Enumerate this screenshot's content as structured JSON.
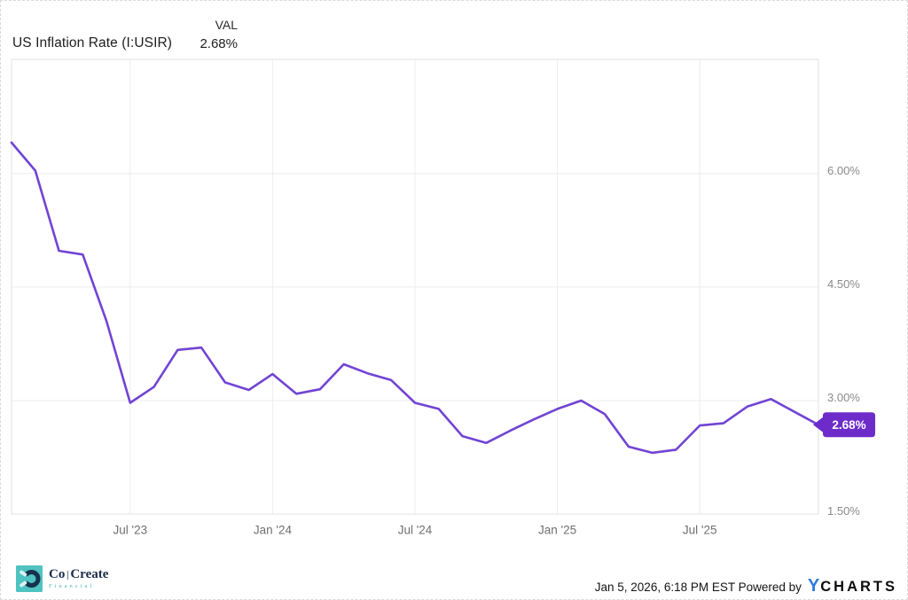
{
  "header": {
    "title": "US Inflation Rate (I:USIR)",
    "val_label": "VAL",
    "val_value": "2.68%"
  },
  "chart_data": {
    "type": "line",
    "title": "US Inflation Rate (I:USIR)",
    "series_name": "US Inflation Rate",
    "unit": "%",
    "x": [
      "Jan 2023",
      "Feb 2023",
      "Mar 2023",
      "Apr 2023",
      "May 2023",
      "Jun 2023",
      "Jul 2023",
      "Aug 2023",
      "Sep 2023",
      "Oct 2023",
      "Nov 2023",
      "Dec 2023",
      "Jan 2024",
      "Feb 2024",
      "Mar 2024",
      "Apr 2024",
      "May 2024",
      "Jun 2024",
      "Jul 2024",
      "Aug 2024",
      "Sep 2024",
      "Oct 2024",
      "Nov 2024",
      "Dec 2024",
      "Jan 2025",
      "Feb 2025",
      "Mar 2025",
      "Apr 2025",
      "May 2025",
      "Jun 2025",
      "Jul 2025",
      "Aug 2025",
      "Sep 2025",
      "Oct 2025",
      "Nov 2025"
    ],
    "values": [
      6.41,
      6.04,
      4.98,
      4.93,
      4.05,
      2.97,
      3.18,
      3.67,
      3.7,
      3.24,
      3.14,
      3.35,
      3.09,
      3.15,
      3.48,
      3.36,
      3.27,
      2.97,
      2.89,
      2.53,
      2.44,
      2.6,
      2.75,
      2.89,
      3.0,
      2.82,
      2.39,
      2.31,
      2.35,
      2.67,
      2.7,
      2.92,
      3.02,
      2.85,
      2.68
    ],
    "x_ticks": [
      {
        "index": 5,
        "label": "Jul '23"
      },
      {
        "index": 11,
        "label": "Jan '24"
      },
      {
        "index": 17,
        "label": "Jul '24"
      },
      {
        "index": 23,
        "label": "Jan '25"
      },
      {
        "index": 29,
        "label": "Jul '25"
      }
    ],
    "y_ticks": [
      {
        "value": 6.0,
        "label": "6.00%"
      },
      {
        "value": 4.5,
        "label": "4.50%"
      },
      {
        "value": 3.0,
        "label": "3.00%"
      },
      {
        "value": 1.5,
        "label": "1.50%"
      }
    ],
    "ylim": [
      1.5,
      7.51
    ],
    "grid": true,
    "legend_position": "none",
    "line_color": "#7144d4",
    "grid_color": "#ececec",
    "border_color": "#e2e2e2",
    "y_label_color": "#8a8a8a",
    "x_label_color": "#6f6f6f",
    "badge": {
      "label": "2.68%",
      "color": "#6d2cc9",
      "text_color": "#ffffff"
    }
  },
  "footer": {
    "timestamp_and_powered": "Jan 5, 2026, 6:18 PM EST Powered by",
    "ycharts_y": "Y",
    "ycharts_rest": "CHARTS",
    "cocreate": {
      "word_part1": "Co",
      "word_part2": "Create",
      "subtext": "Financial",
      "teal": "#4fc3c2",
      "navy": "#1c2b4a"
    }
  }
}
